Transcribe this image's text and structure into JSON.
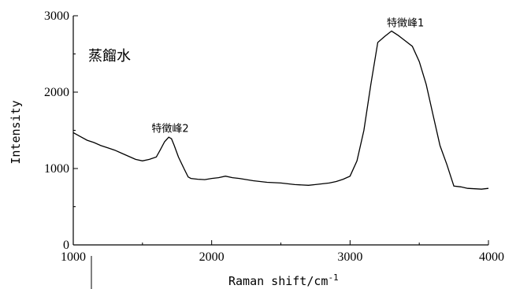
{
  "chart_data": {
    "type": "line",
    "xlabel": "Raman shift/cm",
    "xlabel_sup": "-1",
    "ylabel": "Intensity",
    "xlim": [
      1000,
      4000
    ],
    "ylim": [
      0,
      3000
    ],
    "x_ticks": [
      1000,
      2000,
      3000,
      4000
    ],
    "y_ticks": [
      0,
      1000,
      2000,
      3000
    ],
    "grid": false,
    "legend": "none",
    "sample_label": "蒸餾水",
    "annotations": [
      {
        "text": "特徵峰1",
        "x": 3400,
        "y": 2860
      },
      {
        "text": "特徵峰2",
        "x": 1700,
        "y": 1480
      }
    ],
    "series": [
      {
        "x": [
          1000,
          1050,
          1100,
          1150,
          1200,
          1250,
          1300,
          1350,
          1400,
          1450,
          1500,
          1550,
          1600,
          1630,
          1660,
          1690,
          1710,
          1730,
          1760,
          1800,
          1830,
          1850,
          1900,
          1950,
          2000,
          2050,
          2100,
          2150,
          2200,
          2300,
          2400,
          2500,
          2600,
          2700,
          2750,
          2800,
          2850,
          2900,
          2950,
          3000,
          3050,
          3100,
          3150,
          3200,
          3250,
          3300,
          3350,
          3400,
          3450,
          3500,
          3550,
          3600,
          3650,
          3700,
          3730,
          3750,
          3800,
          3850,
          3900,
          3950,
          4000
        ],
        "y": [
          1470,
          1420,
          1370,
          1340,
          1300,
          1270,
          1240,
          1200,
          1160,
          1120,
          1100,
          1120,
          1150,
          1250,
          1350,
          1410,
          1390,
          1300,
          1150,
          1000,
          890,
          870,
          860,
          855,
          870,
          880,
          900,
          880,
          870,
          840,
          820,
          810,
          790,
          780,
          790,
          800,
          810,
          830,
          860,
          900,
          1100,
          1500,
          2100,
          2650,
          2730,
          2800,
          2740,
          2670,
          2600,
          2400,
          2100,
          1700,
          1300,
          1050,
          880,
          770,
          760,
          740,
          735,
          730,
          740
        ]
      }
    ]
  }
}
